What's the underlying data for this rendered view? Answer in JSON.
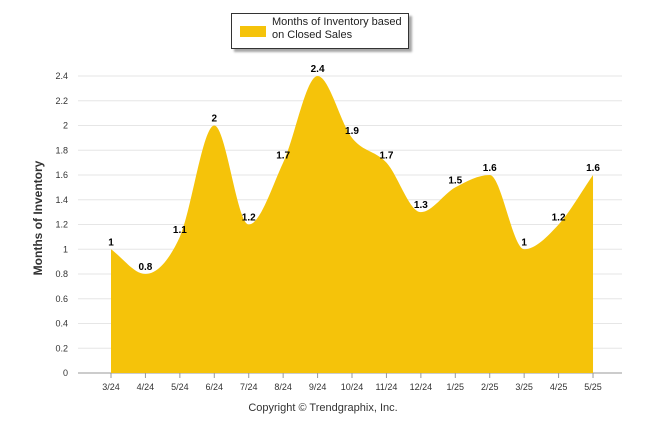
{
  "legend": {
    "text": "Months of Inventory based on Closed Sales",
    "color": "#f5c30a"
  },
  "copyright": "Copyright © Trendgraphix, Inc.",
  "chart_data": {
    "type": "area",
    "categories": [
      "3/24",
      "4/24",
      "5/24",
      "6/24",
      "7/24",
      "8/24",
      "9/24",
      "10/24",
      "11/24",
      "12/24",
      "1/25",
      "2/25",
      "3/25",
      "4/25",
      "5/25"
    ],
    "series": [
      {
        "name": "Months of Inventory based on Closed Sales",
        "values": [
          1,
          0.8,
          1.1,
          2,
          1.2,
          1.7,
          2.4,
          1.9,
          1.7,
          1.3,
          1.5,
          1.6,
          1,
          1.2,
          1.6
        ],
        "labels": [
          "1",
          "0.8",
          "1.1",
          "2",
          "1.2",
          "1.7",
          "2.4",
          "1.9",
          "1.7",
          "1.3",
          "1.5",
          "1.6",
          "1",
          "1.2",
          "1.6"
        ]
      }
    ],
    "ylabel": "Months of Inventory",
    "xlabel": "",
    "ylim": [
      0,
      2.4
    ],
    "yticks": [
      "0",
      "0.2",
      "0.4",
      "0.6",
      "0.8",
      "1",
      "1.2",
      "1.4",
      "1.6",
      "1.8",
      "2",
      "2.2",
      "2.4"
    ],
    "grid": true,
    "legend_position": "top-center",
    "fill_color": "#f5c30a"
  }
}
